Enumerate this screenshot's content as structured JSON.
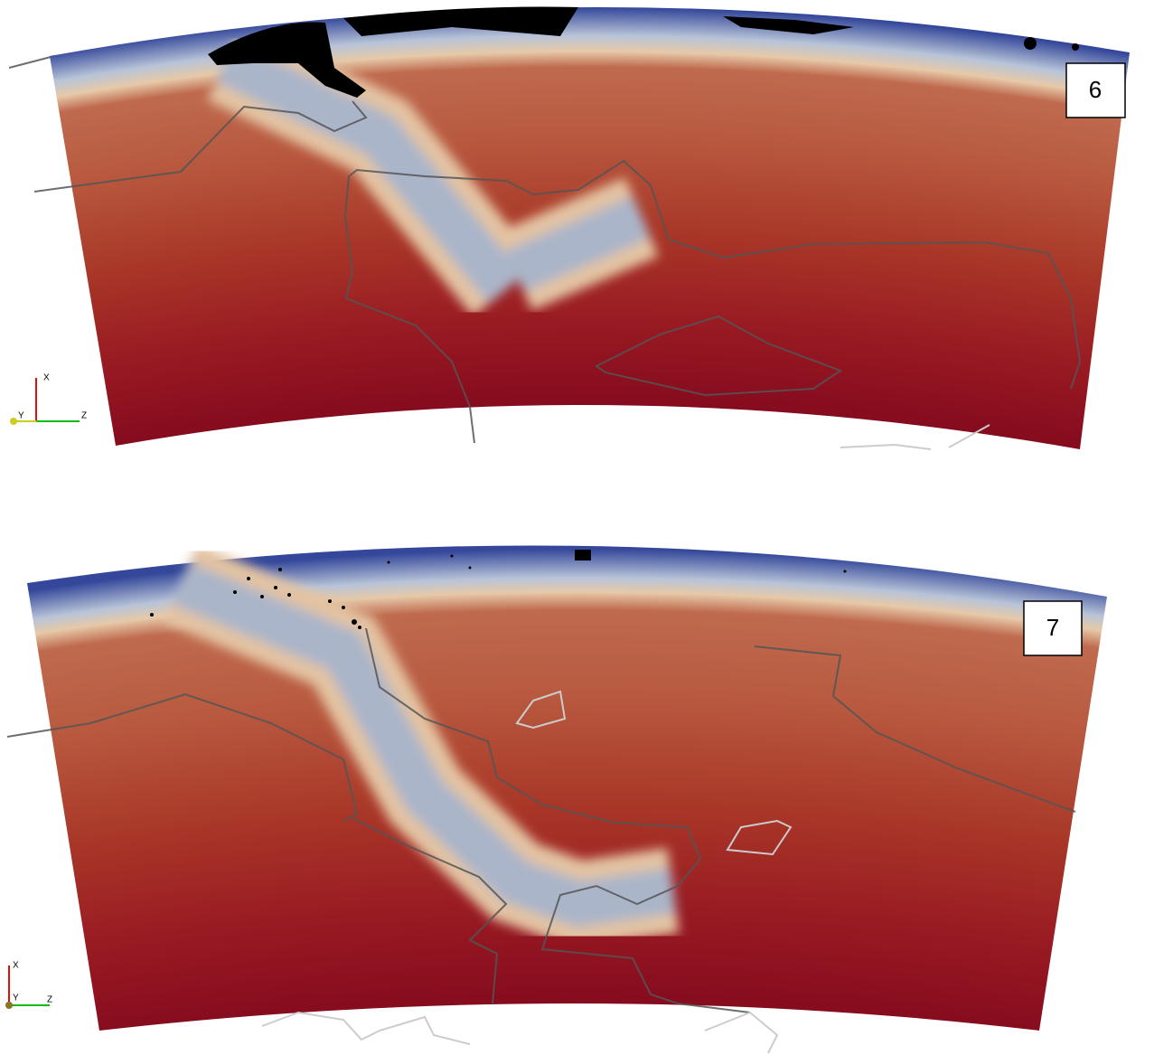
{
  "panels": [
    {
      "label": "6",
      "axes": {
        "x": "X",
        "y": "Y",
        "z": "Z"
      }
    },
    {
      "label": "7",
      "axes": {
        "x": "X",
        "y": "Y",
        "z": "Z"
      }
    }
  ]
}
